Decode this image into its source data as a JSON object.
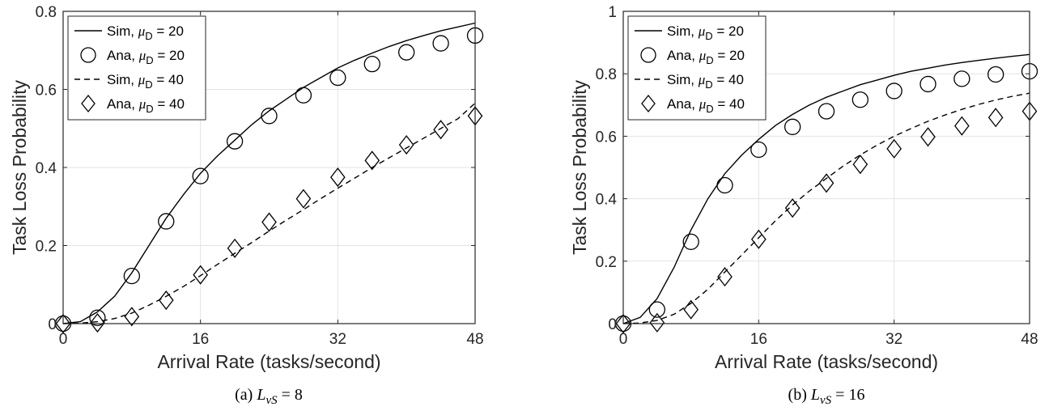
{
  "chart_data": [
    {
      "type": "line",
      "caption_prefix": "(a)",
      "caption_math": "L",
      "caption_sub": "vS",
      "caption_rest": " = 8",
      "xlabel": "Arrival Rate (tasks/second)",
      "ylabel": "Task Loss Probability",
      "xlim": [
        0,
        48
      ],
      "ylim": [
        0,
        0.8
      ],
      "xticks": [
        0,
        16,
        32,
        48
      ],
      "xtick_labels": [
        "0",
        "16",
        "32",
        "48"
      ],
      "yticks": [
        0,
        0.2,
        0.4,
        0.6,
        0.8
      ],
      "ytick_labels": [
        "0",
        "0.2",
        "0.4",
        "0.6",
        "0.8"
      ],
      "grid": true,
      "legend_position": "top-left",
      "series": [
        {
          "name": "Sim, μ_D = 20",
          "legend_main": "Sim, ",
          "legend_mu": "μ",
          "legend_sub": "D",
          "legend_tail": " = 20",
          "style": "solid",
          "marker": "none",
          "x": [
            0,
            2,
            4,
            6,
            8,
            10,
            12,
            14,
            16,
            18,
            20,
            22,
            24,
            26,
            28,
            30,
            32,
            34,
            36,
            38,
            40,
            42,
            44,
            46,
            48
          ],
          "y": [
            0,
            0.005,
            0.03,
            0.07,
            0.13,
            0.2,
            0.27,
            0.33,
            0.385,
            0.43,
            0.47,
            0.51,
            0.545,
            0.575,
            0.605,
            0.63,
            0.655,
            0.675,
            0.693,
            0.71,
            0.725,
            0.738,
            0.75,
            0.76,
            0.77
          ]
        },
        {
          "name": "Ana, μ_D = 20",
          "legend_main": "Ana, ",
          "legend_mu": "μ",
          "legend_sub": "D",
          "legend_tail": " = 20",
          "style": "none",
          "marker": "circle",
          "x": [
            0,
            4,
            8,
            12,
            16,
            20,
            24,
            28,
            32,
            36,
            40,
            44,
            48
          ],
          "y": [
            0,
            0.015,
            0.122,
            0.262,
            0.378,
            0.467,
            0.532,
            0.585,
            0.63,
            0.665,
            0.695,
            0.718,
            0.738
          ]
        },
        {
          "name": "Sim, μ_D = 40",
          "legend_main": "Sim, ",
          "legend_mu": "μ",
          "legend_sub": "D",
          "legend_tail": " = 40",
          "style": "dashed",
          "marker": "none",
          "x": [
            0,
            2,
            4,
            6,
            8,
            10,
            12,
            14,
            16,
            18,
            20,
            22,
            24,
            26,
            28,
            30,
            32,
            34,
            36,
            38,
            40,
            42,
            44,
            46,
            48
          ],
          "y": [
            0,
            0.001,
            0.005,
            0.013,
            0.027,
            0.047,
            0.07,
            0.095,
            0.123,
            0.152,
            0.18,
            0.208,
            0.237,
            0.265,
            0.292,
            0.32,
            0.347,
            0.373,
            0.4,
            0.425,
            0.45,
            0.475,
            0.5,
            0.525,
            0.565
          ]
        },
        {
          "name": "Ana, μ_D = 40",
          "legend_main": "Ana, ",
          "legend_mu": "μ",
          "legend_sub": "D",
          "legend_tail": " = 40",
          "style": "none",
          "marker": "diamond",
          "x": [
            0,
            4,
            8,
            12,
            16,
            20,
            24,
            28,
            32,
            36,
            40,
            44,
            48
          ],
          "y": [
            0,
            0.002,
            0.018,
            0.06,
            0.125,
            0.193,
            0.26,
            0.32,
            0.375,
            0.418,
            0.458,
            0.497,
            0.532
          ]
        }
      ]
    },
    {
      "type": "line",
      "caption_prefix": "(b)",
      "caption_math": "L",
      "caption_sub": "vS",
      "caption_rest": " = 16",
      "xlabel": "Arrival Rate (tasks/second)",
      "ylabel": "Task Loss Probability",
      "xlim": [
        0,
        48
      ],
      "ylim": [
        0,
        1
      ],
      "xticks": [
        0,
        16,
        32,
        48
      ],
      "xtick_labels": [
        "0",
        "16",
        "32",
        "48"
      ],
      "yticks": [
        0,
        0.2,
        0.4,
        0.6,
        0.8,
        1
      ],
      "ytick_labels": [
        "0",
        "0.2",
        "0.4",
        "0.6",
        "0.8",
        "1"
      ],
      "grid": true,
      "legend_position": "top-left",
      "series": [
        {
          "name": "Sim, μ_D = 20",
          "legend_main": "Sim, ",
          "legend_mu": "μ",
          "legend_sub": "D",
          "legend_tail": " = 20",
          "style": "solid",
          "marker": "none",
          "x": [
            0,
            2,
            4,
            6,
            8,
            10,
            12,
            14,
            16,
            18,
            20,
            22,
            24,
            26,
            28,
            30,
            32,
            34,
            36,
            38,
            40,
            42,
            44,
            46,
            48
          ],
          "y": [
            0,
            0.02,
            0.08,
            0.18,
            0.3,
            0.4,
            0.48,
            0.54,
            0.59,
            0.635,
            0.67,
            0.7,
            0.725,
            0.745,
            0.765,
            0.78,
            0.795,
            0.808,
            0.818,
            0.828,
            0.836,
            0.843,
            0.85,
            0.856,
            0.862
          ]
        },
        {
          "name": "Ana, μ_D = 20",
          "legend_main": "Ana, ",
          "legend_mu": "μ",
          "legend_sub": "D",
          "legend_tail": " = 20",
          "style": "none",
          "marker": "circle",
          "x": [
            0,
            4,
            8,
            12,
            16,
            20,
            24,
            28,
            32,
            36,
            40,
            44,
            48
          ],
          "y": [
            0,
            0.045,
            0.262,
            0.443,
            0.557,
            0.63,
            0.68,
            0.717,
            0.745,
            0.767,
            0.784,
            0.798,
            0.808
          ]
        },
        {
          "name": "Sim, μ_D = 40",
          "legend_main": "Sim, ",
          "legend_mu": "μ",
          "legend_sub": "D",
          "legend_tail": " = 40",
          "style": "dashed",
          "marker": "none",
          "x": [
            0,
            2,
            4,
            6,
            8,
            10,
            12,
            14,
            16,
            18,
            20,
            22,
            24,
            26,
            28,
            30,
            32,
            34,
            36,
            38,
            40,
            42,
            44,
            46,
            48
          ],
          "y": [
            0,
            0.002,
            0.01,
            0.03,
            0.065,
            0.11,
            0.165,
            0.22,
            0.275,
            0.33,
            0.38,
            0.425,
            0.465,
            0.505,
            0.54,
            0.572,
            0.6,
            0.625,
            0.648,
            0.668,
            0.686,
            0.702,
            0.716,
            0.728,
            0.738
          ]
        },
        {
          "name": "Ana, μ_D = 40",
          "legend_main": "Ana, ",
          "legend_mu": "μ",
          "legend_sub": "D",
          "legend_tail": " = 40",
          "style": "none",
          "marker": "diamond",
          "x": [
            0,
            4,
            8,
            12,
            16,
            20,
            24,
            28,
            32,
            36,
            40,
            44,
            48
          ],
          "y": [
            0,
            0.003,
            0.045,
            0.15,
            0.27,
            0.37,
            0.45,
            0.51,
            0.56,
            0.598,
            0.633,
            0.66,
            0.68
          ]
        }
      ]
    }
  ]
}
